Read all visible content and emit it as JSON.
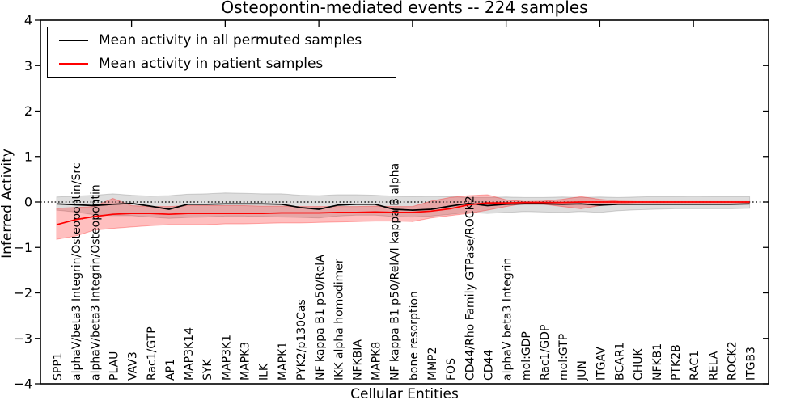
{
  "chart_data": {
    "type": "line",
    "title": "Osteopontin-mediated events -- 224 samples",
    "xlabel": "Cellular Entities",
    "ylabel": "Inferred Activity",
    "ylim": [
      -4,
      4
    ],
    "grid": false,
    "zero_line": "dotted",
    "legend_position": "upper left",
    "background_color": "#ffffff",
    "yticks": [
      {
        "label": "4",
        "value": 4
      },
      {
        "label": "3",
        "value": 3
      },
      {
        "label": "2",
        "value": 2
      },
      {
        "label": "1",
        "value": 1
      },
      {
        "label": "0",
        "value": 0
      },
      {
        "label": "−1",
        "value": -1
      },
      {
        "label": "−2",
        "value": -2
      },
      {
        "label": "−3",
        "value": -3
      },
      {
        "label": "−4",
        "value": -4
      }
    ],
    "categories": [
      "SPP1",
      "alphaV/beta3 Integrin/Osteopontin/Src",
      "alphaV/beta3 Integrin/Osteopontin",
      "PLAU",
      "VAV3",
      "Rac1/GTP",
      "AP1",
      "MAP3K14",
      "SYK",
      "MAP3K1",
      "MAPK3",
      "ILK",
      "MAPK1",
      "PYK2/p130Cas",
      "NF kappa B1 p50/RelA",
      "IKK alpha homodimer",
      "NFKBIA",
      "MAPK8",
      "NF kappa B1 p50/RelA/I kappa B alpha",
      "bone resorption",
      "MMP2",
      "FOS",
      "CD44/Rho Family GTPase/ROCK2",
      "CD44",
      "alphaV beta3 Integrin",
      "mol:GDP",
      "Rac1/GDP",
      "mol:GTP",
      "JUN",
      "ITGAV",
      "BCAR1",
      "CHUK",
      "NFKB1",
      "PTK2B",
      "RAC1",
      "RELA",
      "ROCK2",
      "ITGB3"
    ],
    "series": [
      {
        "key": "permuted",
        "name": "Mean activity in all permuted samples",
        "color": "#000000",
        "band_color": "#000000",
        "band_opacity": 0.13,
        "values": [
          -0.04,
          -0.06,
          -0.08,
          -0.05,
          -0.03,
          -0.09,
          -0.16,
          -0.05,
          -0.05,
          -0.04,
          -0.04,
          -0.04,
          -0.05,
          -0.12,
          -0.16,
          -0.07,
          -0.05,
          -0.05,
          -0.16,
          -0.18,
          -0.16,
          -0.09,
          -0.03,
          -0.08,
          -0.05,
          -0.04,
          -0.04,
          -0.05,
          -0.04,
          -0.07,
          -0.05,
          -0.05,
          -0.05,
          -0.05,
          -0.05,
          -0.05,
          -0.05,
          -0.04
        ],
        "band_upper": [
          0.11,
          0.13,
          0.15,
          0.18,
          0.15,
          0.13,
          0.14,
          0.17,
          0.18,
          0.2,
          0.19,
          0.18,
          0.18,
          0.15,
          0.14,
          0.16,
          0.16,
          0.15,
          0.13,
          0.12,
          0.13,
          0.12,
          0.1,
          0.1,
          0.11,
          0.1,
          0.1,
          0.11,
          0.1,
          0.11,
          0.1,
          0.11,
          0.12,
          0.12,
          0.13,
          0.12,
          0.12,
          0.12
        ],
        "band_lower": [
          -0.18,
          -0.22,
          -0.28,
          -0.3,
          -0.3,
          -0.33,
          -0.36,
          -0.34,
          -0.33,
          -0.31,
          -0.31,
          -0.32,
          -0.33,
          -0.34,
          -0.35,
          -0.31,
          -0.29,
          -0.29,
          -0.32,
          -0.33,
          -0.31,
          -0.27,
          -0.23,
          -0.25,
          -0.23,
          -0.21,
          -0.22,
          -0.23,
          -0.21,
          -0.23,
          -0.19,
          -0.17,
          -0.16,
          -0.15,
          -0.15,
          -0.15,
          -0.15,
          -0.14
        ]
      },
      {
        "key": "patient",
        "name": "Mean activity in patient samples",
        "color": "#ff0000",
        "band_color": "#ff0000",
        "band_opacity": 0.25,
        "values": [
          -0.5,
          -0.39,
          -0.32,
          -0.27,
          -0.25,
          -0.25,
          -0.27,
          -0.25,
          -0.25,
          -0.25,
          -0.25,
          -0.25,
          -0.24,
          -0.24,
          -0.24,
          -0.23,
          -0.23,
          -0.22,
          -0.23,
          -0.23,
          -0.2,
          -0.15,
          -0.06,
          -0.02,
          -0.02,
          -0.01,
          -0.01,
          -0.01,
          0.0,
          0.0,
          0.0,
          0.0,
          0.0,
          0.0,
          0.0,
          0.0,
          0.0,
          0.0
        ],
        "band_upper": [
          -0.14,
          -0.12,
          -0.1,
          0.08,
          -0.08,
          -0.1,
          -0.1,
          -0.08,
          -0.08,
          -0.08,
          -0.08,
          -0.09,
          -0.09,
          -0.1,
          -0.1,
          -0.1,
          -0.1,
          -0.09,
          -0.1,
          -0.1,
          0.02,
          0.1,
          0.14,
          0.16,
          0.05,
          0.01,
          0.02,
          0.06,
          0.12,
          0.06,
          0.02,
          0.01,
          0.01,
          0.01,
          0.01,
          0.01,
          0.01,
          0.01
        ],
        "band_lower": [
          -0.82,
          -0.75,
          -0.62,
          -0.58,
          -0.55,
          -0.52,
          -0.5,
          -0.5,
          -0.5,
          -0.48,
          -0.48,
          -0.47,
          -0.46,
          -0.46,
          -0.45,
          -0.44,
          -0.43,
          -0.42,
          -0.42,
          -0.43,
          -0.35,
          -0.3,
          -0.25,
          -0.18,
          -0.1,
          -0.03,
          -0.05,
          -0.1,
          -0.15,
          -0.08,
          -0.03,
          -0.02,
          -0.02,
          -0.02,
          -0.02,
          -0.02,
          -0.02,
          -0.02
        ]
      }
    ]
  }
}
